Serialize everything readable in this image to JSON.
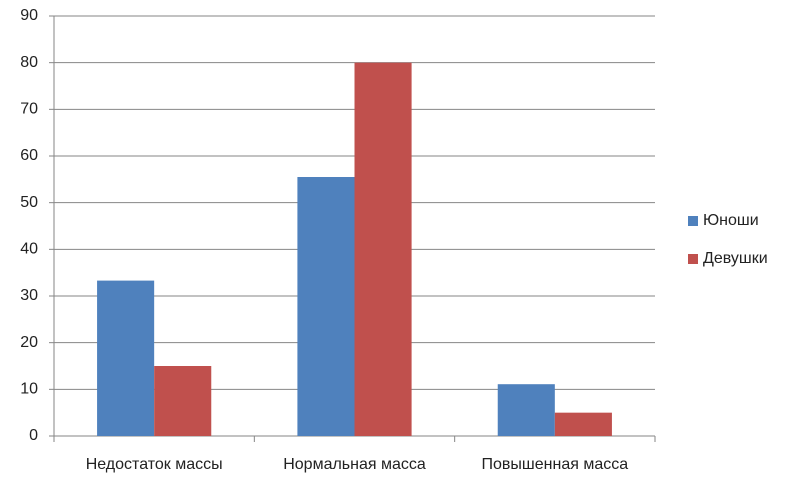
{
  "chart_data": {
    "type": "bar",
    "categories": [
      "Недостаток массы",
      "Нормальная масса",
      "Повышенная масса"
    ],
    "series": [
      {
        "name": "Юноши",
        "color": "#4f81bd",
        "values": [
          33.3,
          55.5,
          11.1
        ]
      },
      {
        "name": "Девушки",
        "color": "#c0504d",
        "values": [
          15,
          80,
          5
        ]
      }
    ],
    "ylim": [
      0,
      90
    ],
    "yticks": [
      0,
      10,
      20,
      30,
      40,
      50,
      60,
      70,
      80,
      90
    ],
    "grid": true,
    "legend": "right"
  }
}
